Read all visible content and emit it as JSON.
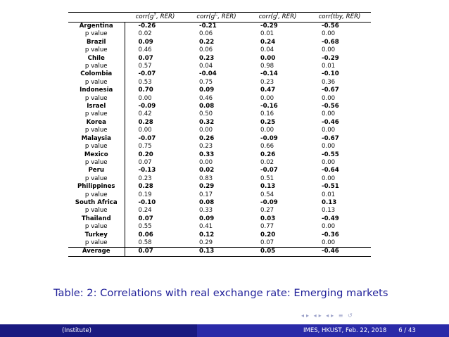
{
  "table": {
    "headers": [
      "corr(g",
      "Y",
      ", RER)",
      "corr(g",
      "C",
      ", RER)",
      "corr(g",
      "I",
      ", RER)",
      "corr(tby, RER)"
    ],
    "header_cols": [
      {
        "base": "corr(g",
        "sup": "Y",
        "tail": ", RER)"
      },
      {
        "base": "corr(g",
        "sup": "C",
        "tail": ", RER)"
      },
      {
        "base": "corr(g",
        "sup": "I",
        "tail": ", RER)"
      },
      {
        "base": "corr(tby, RER)",
        "sup": "",
        "tail": ""
      }
    ],
    "rows": [
      {
        "country": "Argentina",
        "coef": [
          "-0.26",
          "-0.21",
          "-0.29",
          "-0.56"
        ],
        "plabel": "p value",
        "pval": [
          "0.02",
          "0.06",
          "0.01",
          "0.00"
        ]
      },
      {
        "country": "Brazil",
        "coef": [
          "0.09",
          "0.22",
          "0.24",
          "-0.68"
        ],
        "plabel": "p value",
        "pval": [
          "0.46",
          "0.06",
          "0.04",
          "0.00"
        ]
      },
      {
        "country": "Chile",
        "coef": [
          "0.07",
          "0.23",
          "0.00",
          "-0.29"
        ],
        "plabel": "p value",
        "pval": [
          "0.57",
          "0.04",
          "0.98",
          "0.01"
        ]
      },
      {
        "country": "Colombia",
        "coef": [
          "-0.07",
          "-0.04",
          "-0.14",
          "-0.10"
        ],
        "plabel": "p value",
        "pval": [
          "0.53",
          "0.75",
          "0.23",
          "0.36"
        ]
      },
      {
        "country": "Indonesia",
        "coef": [
          "0.70",
          "0.09",
          "0.47",
          "-0.67"
        ],
        "plabel": "p value",
        "pval": [
          "0.00",
          "0.46",
          "0.00",
          "0.00"
        ]
      },
      {
        "country": "Israel",
        "coef": [
          "-0.09",
          "0.08",
          "-0.16",
          "-0.56"
        ],
        "plabel": "p value",
        "pval": [
          "0.42",
          "0.50",
          "0.16",
          "0.00"
        ]
      },
      {
        "country": "Korea",
        "coef": [
          "0.28",
          "0.32",
          "0.25",
          "-0.46"
        ],
        "plabel": "p value",
        "pval": [
          "0.00",
          "0.00",
          "0.00",
          "0.00"
        ]
      },
      {
        "country": "Malaysia",
        "coef": [
          "-0.07",
          "0.26",
          "-0.09",
          "-0.67"
        ],
        "plabel": "p value",
        "pval": [
          "0.75",
          "0.23",
          "0.66",
          "0.00"
        ]
      },
      {
        "country": "Mexico",
        "coef": [
          "0.20",
          "0.33",
          "0.26",
          "-0.55"
        ],
        "plabel": "p value",
        "pval": [
          "0.07",
          "0.00",
          "0.02",
          "0.00"
        ]
      },
      {
        "country": "Peru",
        "coef": [
          "-0.13",
          "0.02",
          "-0.07",
          "-0.64"
        ],
        "plabel": "p value",
        "pval": [
          "0.23",
          "0.83",
          "0.51",
          "0.00"
        ]
      },
      {
        "country": "Philippines",
        "coef": [
          "0.28",
          "0.29",
          "0.13",
          "-0.51"
        ],
        "plabel": "p value",
        "pval": [
          "0.19",
          "0.17",
          "0.54",
          "0.01"
        ]
      },
      {
        "country": "South Africa",
        "coef": [
          "-0.10",
          "0.08",
          "-0.09",
          "0.13"
        ],
        "plabel": "p value",
        "pval": [
          "0.24",
          "0.33",
          "0.27",
          "0.13"
        ]
      },
      {
        "country": "Thailand",
        "coef": [
          "0.07",
          "0.09",
          "0.03",
          "-0.49"
        ],
        "plabel": "p value",
        "pval": [
          "0.55",
          "0.41",
          "0.77",
          "0.00"
        ]
      },
      {
        "country": "Turkey",
        "coef": [
          "0.06",
          "0.12",
          "0.20",
          "-0.36"
        ],
        "plabel": "p value",
        "pval": [
          "0.58",
          "0.29",
          "0.07",
          "0.00"
        ]
      }
    ],
    "average": {
      "label": "Average",
      "values": [
        "0.07",
        "0.13",
        "0.05",
        "-0.46"
      ]
    }
  },
  "caption": {
    "label": "Table:",
    "text": "2: Correlations with real exchange rate: Emerging markets"
  },
  "nav_icons": [
    "frame-prev-icon",
    "frame-next-icon",
    "subsection-prev-icon",
    "subsection-next-icon",
    "section-prev-icon",
    "section-next-icon",
    "align-icon",
    "search-icon"
  ],
  "footer": {
    "left": "(Institute)",
    "right": "IMES, HKUST, Feb. 22, 2018",
    "page": "6 / 43"
  },
  "colors": {
    "caption": "#1f1f99",
    "footer_left": "#1a1a80",
    "footer_right": "#2a2aa8"
  }
}
